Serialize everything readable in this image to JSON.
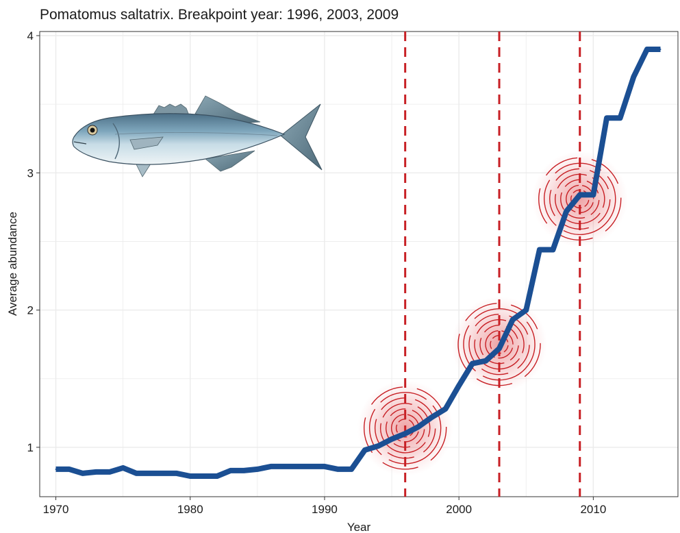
{
  "chart_data": {
    "type": "line",
    "title": "Pomatomus saltatrix. Breakpoint year: 1996, 2003, 2009",
    "xlabel": "Year",
    "ylabel": "Average abundance",
    "xlim": [
      1968.8,
      2016.3
    ],
    "ylim": [
      0.64,
      4.03
    ],
    "x_ticks": [
      1970,
      1980,
      1990,
      2000,
      2010
    ],
    "y_ticks": [
      1,
      2,
      3,
      4
    ],
    "grid": true,
    "breakpoints": [
      1996,
      2003,
      2009
    ],
    "series": [
      {
        "color": "#1b4f93",
        "points": [
          [
            1970,
            0.84
          ],
          [
            1971,
            0.84
          ],
          [
            1972,
            0.81
          ],
          [
            1973,
            0.82
          ],
          [
            1974,
            0.82
          ],
          [
            1975,
            0.85
          ],
          [
            1976,
            0.81
          ],
          [
            1977,
            0.81
          ],
          [
            1978,
            0.81
          ],
          [
            1979,
            0.81
          ],
          [
            1980,
            0.79
          ],
          [
            1981,
            0.79
          ],
          [
            1982,
            0.79
          ],
          [
            1983,
            0.83
          ],
          [
            1984,
            0.83
          ],
          [
            1985,
            0.84
          ],
          [
            1986,
            0.86
          ],
          [
            1987,
            0.86
          ],
          [
            1988,
            0.86
          ],
          [
            1989,
            0.86
          ],
          [
            1990,
            0.86
          ],
          [
            1991,
            0.84
          ],
          [
            1992,
            0.84
          ],
          [
            1993,
            0.98
          ],
          [
            1994,
            1.01
          ],
          [
            1995,
            1.06
          ],
          [
            1996,
            1.1
          ],
          [
            1997,
            1.15
          ],
          [
            1998,
            1.22
          ],
          [
            1999,
            1.28
          ],
          [
            2000,
            1.45
          ],
          [
            2001,
            1.61
          ],
          [
            2002,
            1.63
          ],
          [
            2003,
            1.72
          ],
          [
            2004,
            1.93
          ],
          [
            2005,
            2.0
          ],
          [
            2006,
            2.44
          ],
          [
            2007,
            2.44
          ],
          [
            2008,
            2.72
          ],
          [
            2009,
            2.84
          ],
          [
            2010,
            2.84
          ],
          [
            2011,
            3.4
          ],
          [
            2012,
            3.4
          ],
          [
            2013,
            3.7
          ],
          [
            2014,
            3.9
          ],
          [
            2015,
            3.9
          ]
        ]
      }
    ],
    "highlights": [
      {
        "x": 1996,
        "y": 1.14
      },
      {
        "x": 2003,
        "y": 1.75
      },
      {
        "x": 2009,
        "y": 2.81
      }
    ],
    "colors": {
      "line": "#1b4f93",
      "breakpoint": "#c71f24",
      "grid": "#ebebeb",
      "panel_border": "#333333"
    },
    "image": "bluefish-illustration"
  }
}
